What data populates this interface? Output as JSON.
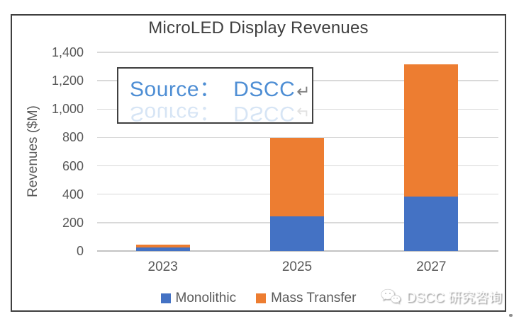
{
  "chart_data": {
    "type": "bar",
    "stacked": true,
    "title": "MicroLED Display Revenues",
    "xlabel": "",
    "ylabel": "Revenues ($M)",
    "categories": [
      "2023",
      "2025",
      "2027"
    ],
    "series": [
      {
        "name": "Monolithic",
        "color": "#4472C4",
        "values": [
          25,
          245,
          385
        ]
      },
      {
        "name": "Mass Transfer",
        "color": "#ED7D31",
        "values": [
          20,
          550,
          930
        ]
      }
    ],
    "ylim": [
      0,
      1400
    ],
    "yticks": [
      {
        "value": 0,
        "label": "0"
      },
      {
        "value": 200,
        "label": "200"
      },
      {
        "value": 400,
        "label": "400"
      },
      {
        "value": 600,
        "label": "600"
      },
      {
        "value": 800,
        "label": "800"
      },
      {
        "value": 1000,
        "label": "1,000"
      },
      {
        "value": 1200,
        "label": "1,200"
      },
      {
        "value": 1400,
        "label": "1,400"
      }
    ],
    "grid": true,
    "legend_position": "bottom"
  },
  "source_box": {
    "text": "Source：  DSCC",
    "return_symbol": "↵"
  },
  "watermark": {
    "icon": "wechat-icon",
    "text": "DSCC 研究咨询"
  },
  "colors": {
    "monolithic_blue": "#4472C4",
    "mass_transfer_orange": "#ED7D31",
    "gridline": "#D9D9D9",
    "axis_text": "#595959",
    "title_text": "#404040",
    "source_text": "#4E8ED4",
    "frame_border": "#3F3F3F"
  }
}
